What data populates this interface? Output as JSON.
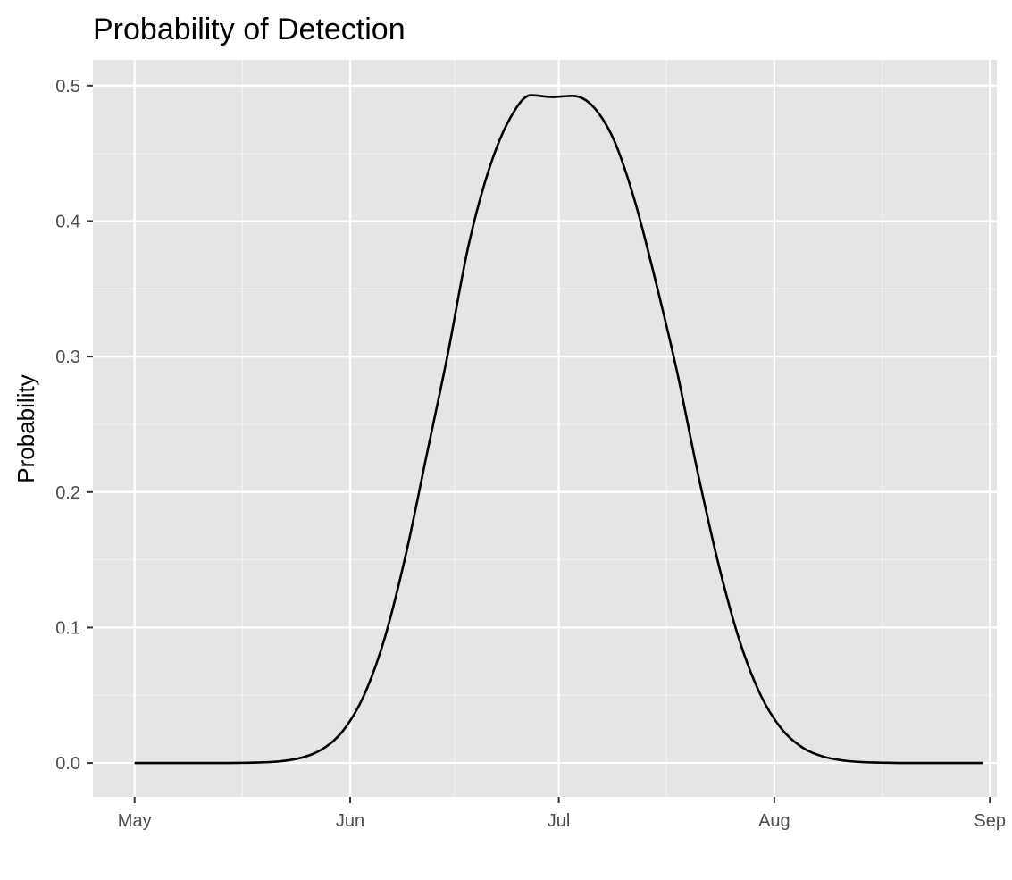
{
  "chart_data": {
    "type": "line",
    "title": "Probability of Detection",
    "xlabel": "",
    "ylabel": "Probability",
    "x_axis_type": "date",
    "xlim": [
      "2023-04-25",
      "2023-09-02"
    ],
    "ylim": [
      -0.025,
      0.519
    ],
    "x_ticks": [
      {
        "date": "2023-05-01",
        "label": "May"
      },
      {
        "date": "2023-06-01",
        "label": "Jun"
      },
      {
        "date": "2023-07-01",
        "label": "Jul"
      },
      {
        "date": "2023-08-01",
        "label": "Aug"
      },
      {
        "date": "2023-09-01",
        "label": "Sep"
      }
    ],
    "y_ticks": [
      {
        "value": 0.0,
        "label": "0.0"
      },
      {
        "value": 0.1,
        "label": "0.1"
      },
      {
        "value": 0.2,
        "label": "0.2"
      },
      {
        "value": 0.3,
        "label": "0.3"
      },
      {
        "value": 0.4,
        "label": "0.4"
      },
      {
        "value": 0.5,
        "label": "0.5"
      }
    ],
    "grid": true,
    "legend": "none",
    "series": [
      {
        "x": [
          "2023-05-01",
          "2023-05-04",
          "2023-05-07",
          "2023-05-10",
          "2023-05-13",
          "2023-05-16",
          "2023-05-19",
          "2023-05-22",
          "2023-05-25",
          "2023-05-28",
          "2023-05-31",
          "2023-06-03",
          "2023-06-06",
          "2023-06-09",
          "2023-06-12",
          "2023-06-15",
          "2023-06-18",
          "2023-06-21",
          "2023-06-24",
          "2023-06-27",
          "2023-06-30",
          "2023-07-03",
          "2023-07-06",
          "2023-07-09",
          "2023-07-12",
          "2023-07-15",
          "2023-07-18",
          "2023-07-21",
          "2023-07-24",
          "2023-07-27",
          "2023-07-30",
          "2023-08-02",
          "2023-08-05",
          "2023-08-08",
          "2023-08-11",
          "2023-08-14",
          "2023-08-17",
          "2023-08-20",
          "2023-08-23",
          "2023-08-26",
          "2023-08-29",
          "2023-08-31"
        ],
        "values": [
          0.0,
          0.0,
          0.0,
          0.0,
          0.0,
          0.0001,
          0.0004,
          0.0013,
          0.0039,
          0.0103,
          0.024,
          0.0501,
          0.0929,
          0.1538,
          0.2273,
          0.3008,
          0.3815,
          0.4387,
          0.4759,
          0.4929,
          0.4916,
          0.4924,
          0.4842,
          0.459,
          0.4137,
          0.3542,
          0.2891,
          0.2141,
          0.1462,
          0.0903,
          0.0505,
          0.0255,
          0.0116,
          0.0048,
          0.0018,
          0.0006,
          0.0002,
          0.0,
          0.0,
          0.0,
          0.0,
          0.0
        ]
      }
    ],
    "colors": {
      "panel_background": "#e5e5e5",
      "grid_major": "#ffffff",
      "grid_minor": "#f2f2f2",
      "line": "#000000",
      "tick_text": "#4d4d4d"
    }
  }
}
